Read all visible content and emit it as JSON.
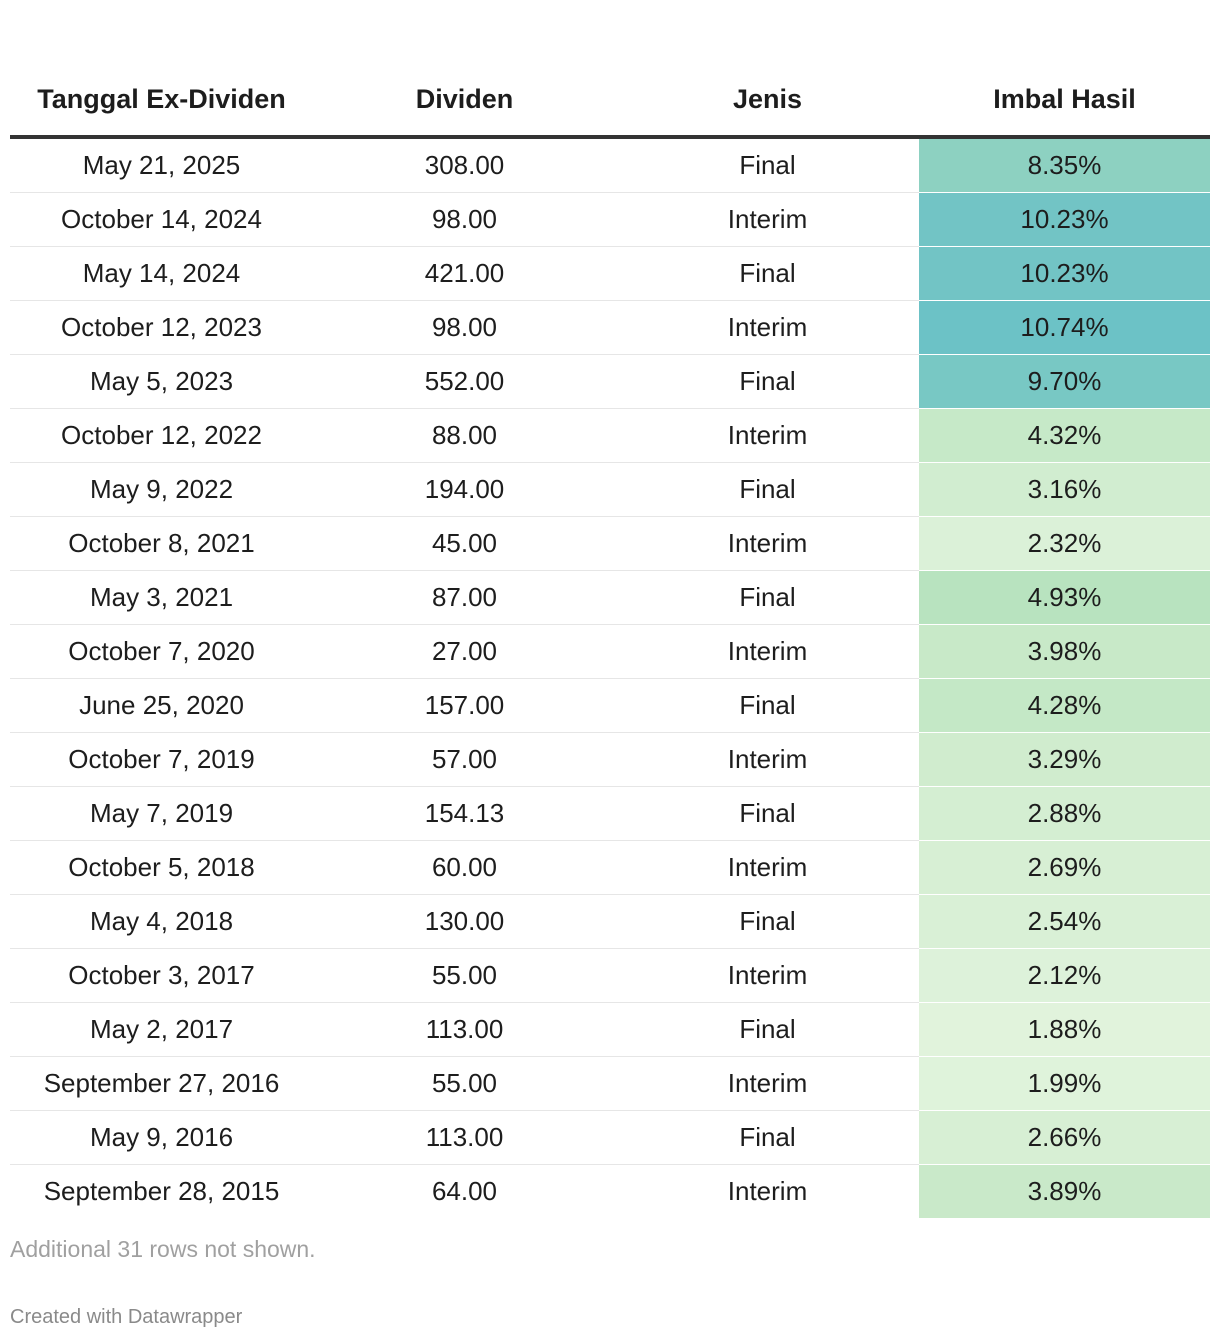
{
  "chart_data": {
    "type": "table",
    "columns": [
      "Tanggal Ex-Dividen",
      "Dividen",
      "Jenis",
      "Imbal Hasil"
    ],
    "rows": [
      {
        "date": "May 21, 2025",
        "dividend": "308.00",
        "type": "Final",
        "yield": "8.35%",
        "yield_value": 8.35,
        "color": "#8dd1c1"
      },
      {
        "date": "October 14, 2024",
        "dividend": "98.00",
        "type": "Interim",
        "yield": "10.23%",
        "yield_value": 10.23,
        "color": "#72c4c5"
      },
      {
        "date": "May 14, 2024",
        "dividend": "421.00",
        "type": "Final",
        "yield": "10.23%",
        "yield_value": 10.23,
        "color": "#72c4c5"
      },
      {
        "date": "October 12, 2023",
        "dividend": "98.00",
        "type": "Interim",
        "yield": "10.74%",
        "yield_value": 10.74,
        "color": "#6cc2c6"
      },
      {
        "date": "May 5, 2023",
        "dividend": "552.00",
        "type": "Final",
        "yield": "9.70%",
        "yield_value": 9.7,
        "color": "#78c8c4"
      },
      {
        "date": "October 12, 2022",
        "dividend": "88.00",
        "type": "Interim",
        "yield": "4.32%",
        "yield_value": 4.32,
        "color": "#c6e9c8"
      },
      {
        "date": "May 9, 2022",
        "dividend": "194.00",
        "type": "Final",
        "yield": "3.16%",
        "yield_value": 3.16,
        "color": "#d1edd0"
      },
      {
        "date": "October 8, 2021",
        "dividend": "45.00",
        "type": "Interim",
        "yield": "2.32%",
        "yield_value": 2.32,
        "color": "#dbf1d8"
      },
      {
        "date": "May 3, 2021",
        "dividend": "87.00",
        "type": "Final",
        "yield": "4.93%",
        "yield_value": 4.93,
        "color": "#b8e3bf"
      },
      {
        "date": "October 7, 2020",
        "dividend": "27.00",
        "type": "Interim",
        "yield": "3.98%",
        "yield_value": 3.98,
        "color": "#c8e9c8"
      },
      {
        "date": "June 25, 2020",
        "dividend": "157.00",
        "type": "Final",
        "yield": "4.28%",
        "yield_value": 4.28,
        "color": "#c4e8c6"
      },
      {
        "date": "October 7, 2019",
        "dividend": "57.00",
        "type": "Interim",
        "yield": "3.29%",
        "yield_value": 3.29,
        "color": "#d0ecce"
      },
      {
        "date": "May 7, 2019",
        "dividend": "154.13",
        "type": "Final",
        "yield": "2.88%",
        "yield_value": 2.88,
        "color": "#d4eed2"
      },
      {
        "date": "October 5, 2018",
        "dividend": "60.00",
        "type": "Interim",
        "yield": "2.69%",
        "yield_value": 2.69,
        "color": "#d7efd4"
      },
      {
        "date": "May 4, 2018",
        "dividend": "130.00",
        "type": "Final",
        "yield": "2.54%",
        "yield_value": 2.54,
        "color": "#d9f0d6"
      },
      {
        "date": "October 3, 2017",
        "dividend": "55.00",
        "type": "Interim",
        "yield": "2.12%",
        "yield_value": 2.12,
        "color": "#ddf2da"
      },
      {
        "date": "May 2, 2017",
        "dividend": "113.00",
        "type": "Final",
        "yield": "1.88%",
        "yield_value": 1.88,
        "color": "#e1f3dc"
      },
      {
        "date": "September 27, 2016",
        "dividend": "55.00",
        "type": "Interim",
        "yield": "1.99%",
        "yield_value": 1.99,
        "color": "#dff3db"
      },
      {
        "date": "May 9, 2016",
        "dividend": "113.00",
        "type": "Final",
        "yield": "2.66%",
        "yield_value": 2.66,
        "color": "#d7efd4"
      },
      {
        "date": "September 28, 2015",
        "dividend": "64.00",
        "type": "Interim",
        "yield": "3.89%",
        "yield_value": 3.89,
        "color": "#c9e9c9"
      }
    ]
  },
  "notes": "Additional 31 rows not shown.",
  "credit": "Created with Datawrapper"
}
